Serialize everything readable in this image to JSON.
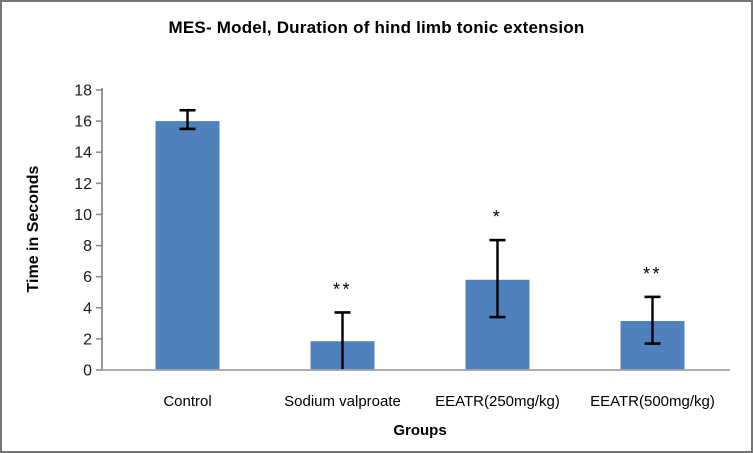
{
  "figure": {
    "background": "#ffffff",
    "border_color": "#767676"
  },
  "chart_data": {
    "type": "bar",
    "title": "MES- Model, Duration of hind limb tonic extension",
    "xlabel": "Groups",
    "ylabel": "Time in Seconds",
    "categories": [
      "Control",
      "Sodium valproate",
      "EEATR(250mg/kg)",
      "EEATR(500mg/kg)"
    ],
    "values": [
      16.0,
      1.85,
      5.8,
      3.15
    ],
    "error_high": [
      16.7,
      3.7,
      8.35,
      4.7
    ],
    "error_low": [
      15.5,
      0,
      3.4,
      1.7
    ],
    "significance": [
      "",
      "**",
      "*",
      "**"
    ],
    "ylim": [
      0,
      18
    ],
    "ytick_step": 2,
    "yticks": [
      0,
      2,
      4,
      6,
      8,
      10,
      12,
      14,
      16,
      18
    ],
    "bar_color": "#4f81bd",
    "error_color": "#000000",
    "axis_color": "#8c8c8c",
    "tick_label_color": "#1a1a1a",
    "grid": false,
    "legend": false
  }
}
